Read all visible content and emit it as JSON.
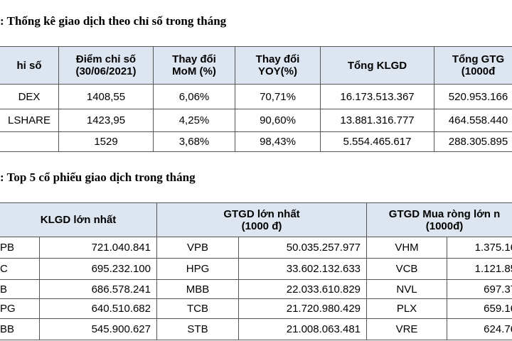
{
  "section1": {
    "title": ": Thống kê giao dịch theo chỉ số trong tháng",
    "headers": [
      [
        "hỉ số"
      ],
      [
        "Điểm chỉ số",
        "(30/06/2021)"
      ],
      [
        "Thay đổi",
        "MoM (%)"
      ],
      [
        "Thay đổi",
        "YOY(%)"
      ],
      [
        "Tổng KLGD"
      ],
      [
        "Tổng GTG",
        "(1000đ"
      ]
    ],
    "rows": [
      [
        "DEX",
        "1408,55",
        "6,06%",
        "70,71%",
        "16.173.513.367",
        "520.953.166"
      ],
      [
        "LSHARE",
        "1423,95",
        "4,25%",
        "90,60%",
        "13.881.316.777",
        "464.558.440"
      ],
      [
        null,
        "1529",
        "3,68%",
        "98,43%",
        "5.554.465.617",
        "288.305.895"
      ]
    ]
  },
  "section2": {
    "title": ": Top 5 cổ phiếu giao dịch trong tháng",
    "headers": [
      [
        "KLGD lớn nhất"
      ],
      [
        "GTGD lớn nhất",
        "(1000 đ)"
      ],
      [
        "GTGD Mua ròng lớn n",
        "(1000đ)"
      ]
    ],
    "rows": [
      [
        "PB",
        "721.040.841",
        "VPB",
        "50.035.257.977",
        "VHM",
        "1.375.16"
      ],
      [
        "C",
        "695.232.100",
        "HPG",
        "33.602.132.633",
        "VCB",
        "1.121.85"
      ],
      [
        "B",
        "686.578.241",
        "MBB",
        "22.033.610.829",
        "NVL",
        "697.37"
      ],
      [
        "PG",
        "640.510.682",
        "TCB",
        "21.720.980.429",
        "PLX",
        "659.16"
      ],
      [
        "BB",
        "545.900.627",
        "STB",
        "21.008.063.481",
        "VRE",
        "624.76"
      ]
    ]
  }
}
